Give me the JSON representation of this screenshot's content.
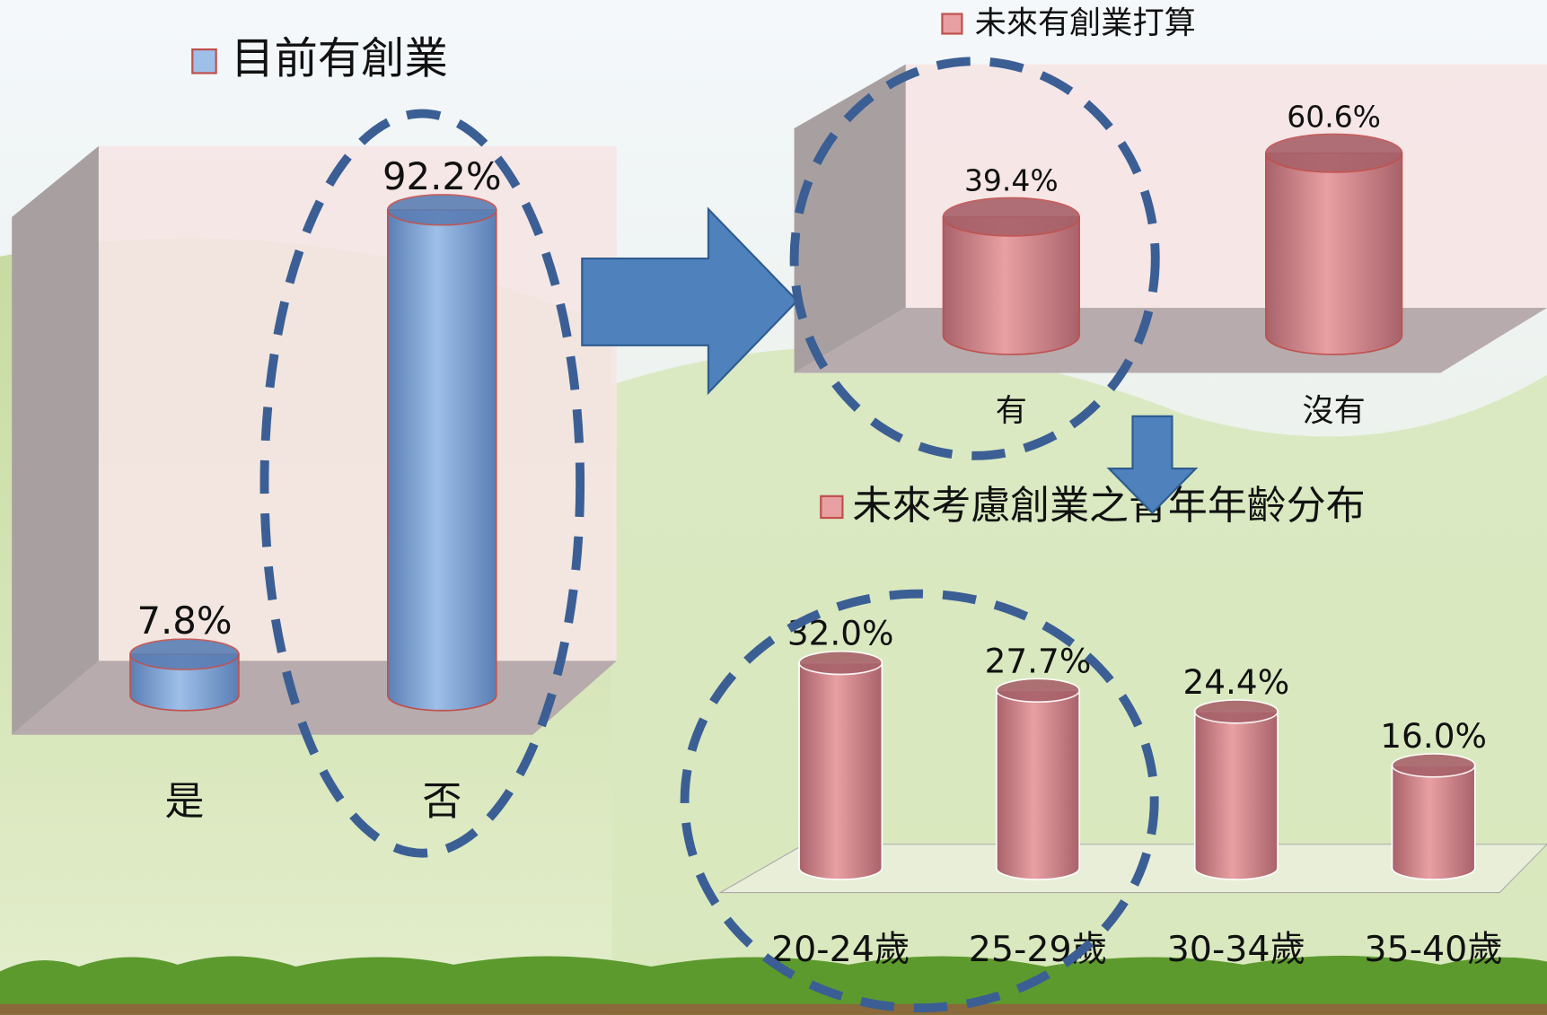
{
  "chart_data": [
    {
      "type": "bar",
      "title": "目前有創業",
      "categories": [
        "是",
        "否"
      ],
      "values": [
        7.8,
        92.2
      ],
      "value_labels": [
        "7.8%",
        "92.2%"
      ],
      "color": "#9dbfe8"
    },
    {
      "type": "bar",
      "title": "未來有創業打算",
      "categories": [
        "有",
        "沒有"
      ],
      "values": [
        39.4,
        60.6
      ],
      "value_labels": [
        "39.4%",
        "60.6%"
      ],
      "color": "#e8a0a2"
    },
    {
      "type": "bar",
      "title": "未來考慮創業之青年年齡分布",
      "categories": [
        "20-24歲",
        "25-29歲",
        "30-34歲",
        "35-40歲"
      ],
      "values": [
        32.0,
        27.7,
        24.4,
        16.0
      ],
      "value_labels": [
        "32.0%",
        "27.7%",
        "24.4%",
        "16.0%"
      ],
      "color": "#e8a0a2"
    }
  ]
}
